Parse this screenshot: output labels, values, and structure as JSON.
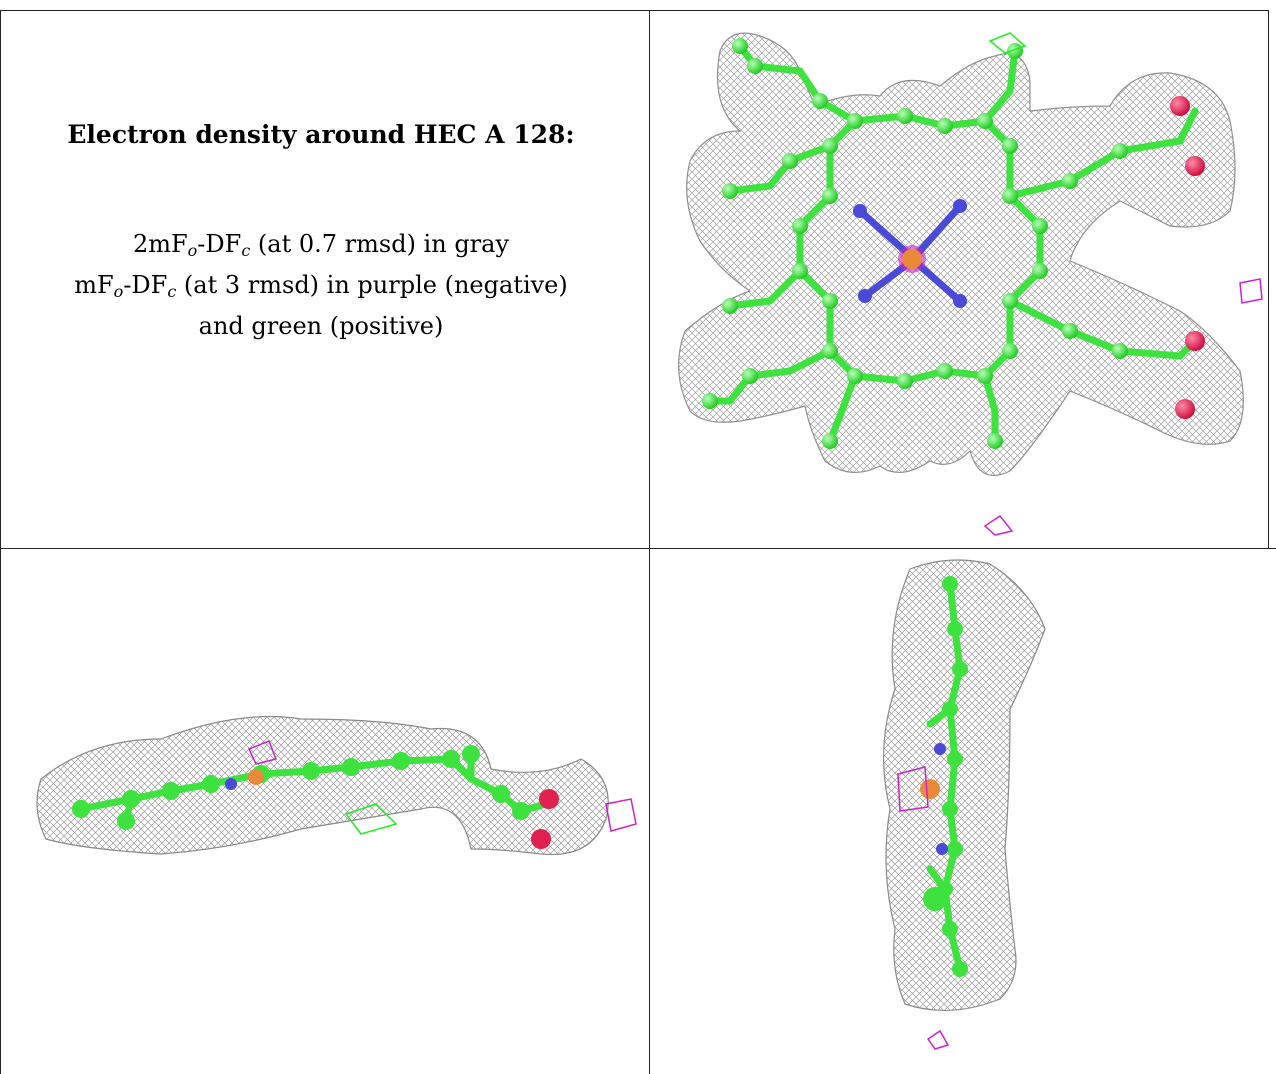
{
  "caption": {
    "title": "Electron density around HEC A 128:",
    "line1_prefix": "2mF",
    "line1_sub1": "o",
    "line1_mid": "-DF",
    "line1_sub2": "c",
    "line1_suffix": " (at 0.7 rmsd) in gray",
    "line2_prefix": "mF",
    "line2_sub1": "o",
    "line2_mid": "-DF",
    "line2_sub2": "c",
    "line2_suffix": " (at 3 rmsd) in purple (negative)",
    "line3": "and green (positive)"
  },
  "colors": {
    "mesh_gray": "#9a9a9a",
    "carbon_green": "#3ee23e",
    "nitrogen_blue": "#4a4ad8",
    "oxygen_red": "#e0204e",
    "iron_orange": "#e88a3a",
    "negative_purple": "#cc22cc",
    "positive_green": "#22ee22",
    "rule": "#222222"
  },
  "panels": [
    {
      "id": "top-right",
      "view": "face-on"
    },
    {
      "id": "bottom-left",
      "view": "edge-on horizontal"
    },
    {
      "id": "bottom-right",
      "view": "edge-on vertical"
    }
  ]
}
